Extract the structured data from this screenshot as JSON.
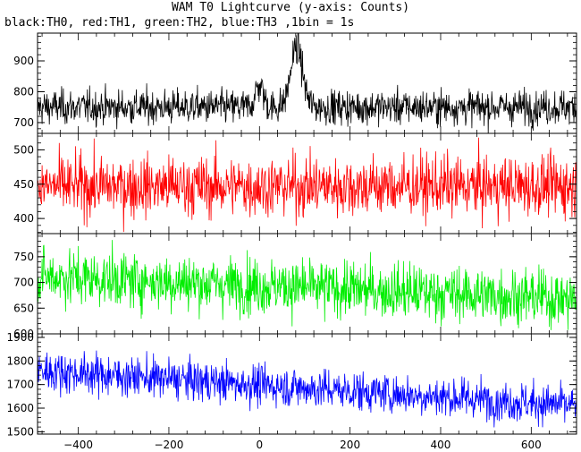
{
  "header": {
    "title": "WAM T0 Lightcurve (y-axis: Counts)",
    "subtitle": "black:TH0, red:TH1, green:TH2, blue:TH3 ,1bin = 1s"
  },
  "chart_data": [
    {
      "type": "line",
      "series": [
        {
          "name": "TH0",
          "color": "#000000"
        }
      ],
      "x_range": [
        -490,
        700
      ],
      "ylim": [
        665,
        990
      ],
      "yticks": [
        700,
        800,
        900
      ],
      "baseline": 750,
      "noise": 28,
      "features": [
        {
          "center": 0,
          "width": 9,
          "amp": 70
        },
        {
          "center": 82,
          "width": 13,
          "amp": 195
        }
      ]
    },
    {
      "type": "line",
      "series": [
        {
          "name": "TH1",
          "color": "#ff0000"
        }
      ],
      "x_range": [
        -490,
        700
      ],
      "ylim": [
        378,
        524
      ],
      "yticks": [
        400,
        450,
        500
      ],
      "baseline": 447,
      "noise": 22
    },
    {
      "type": "line",
      "series": [
        {
          "name": "TH2",
          "color": "#00ee00"
        }
      ],
      "x_range": [
        -490,
        700
      ],
      "ylim": [
        600,
        795
      ],
      "yticks": [
        600,
        650,
        700,
        750
      ],
      "baseline_start": 712,
      "baseline_end": 668,
      "noise": 27
    },
    {
      "type": "line",
      "series": [
        {
          "name": "TH3",
          "color": "#0000ff"
        }
      ],
      "x_range": [
        -490,
        700
      ],
      "ylim": [
        1490,
        1915
      ],
      "yticks": [
        1500,
        1600,
        1700,
        1800,
        1900
      ],
      "baseline_start": 1760,
      "baseline_end": 1610,
      "noise": 42,
      "xlabel": "",
      "xticks": [
        -400,
        -200,
        0,
        200,
        400,
        600
      ]
    }
  ]
}
